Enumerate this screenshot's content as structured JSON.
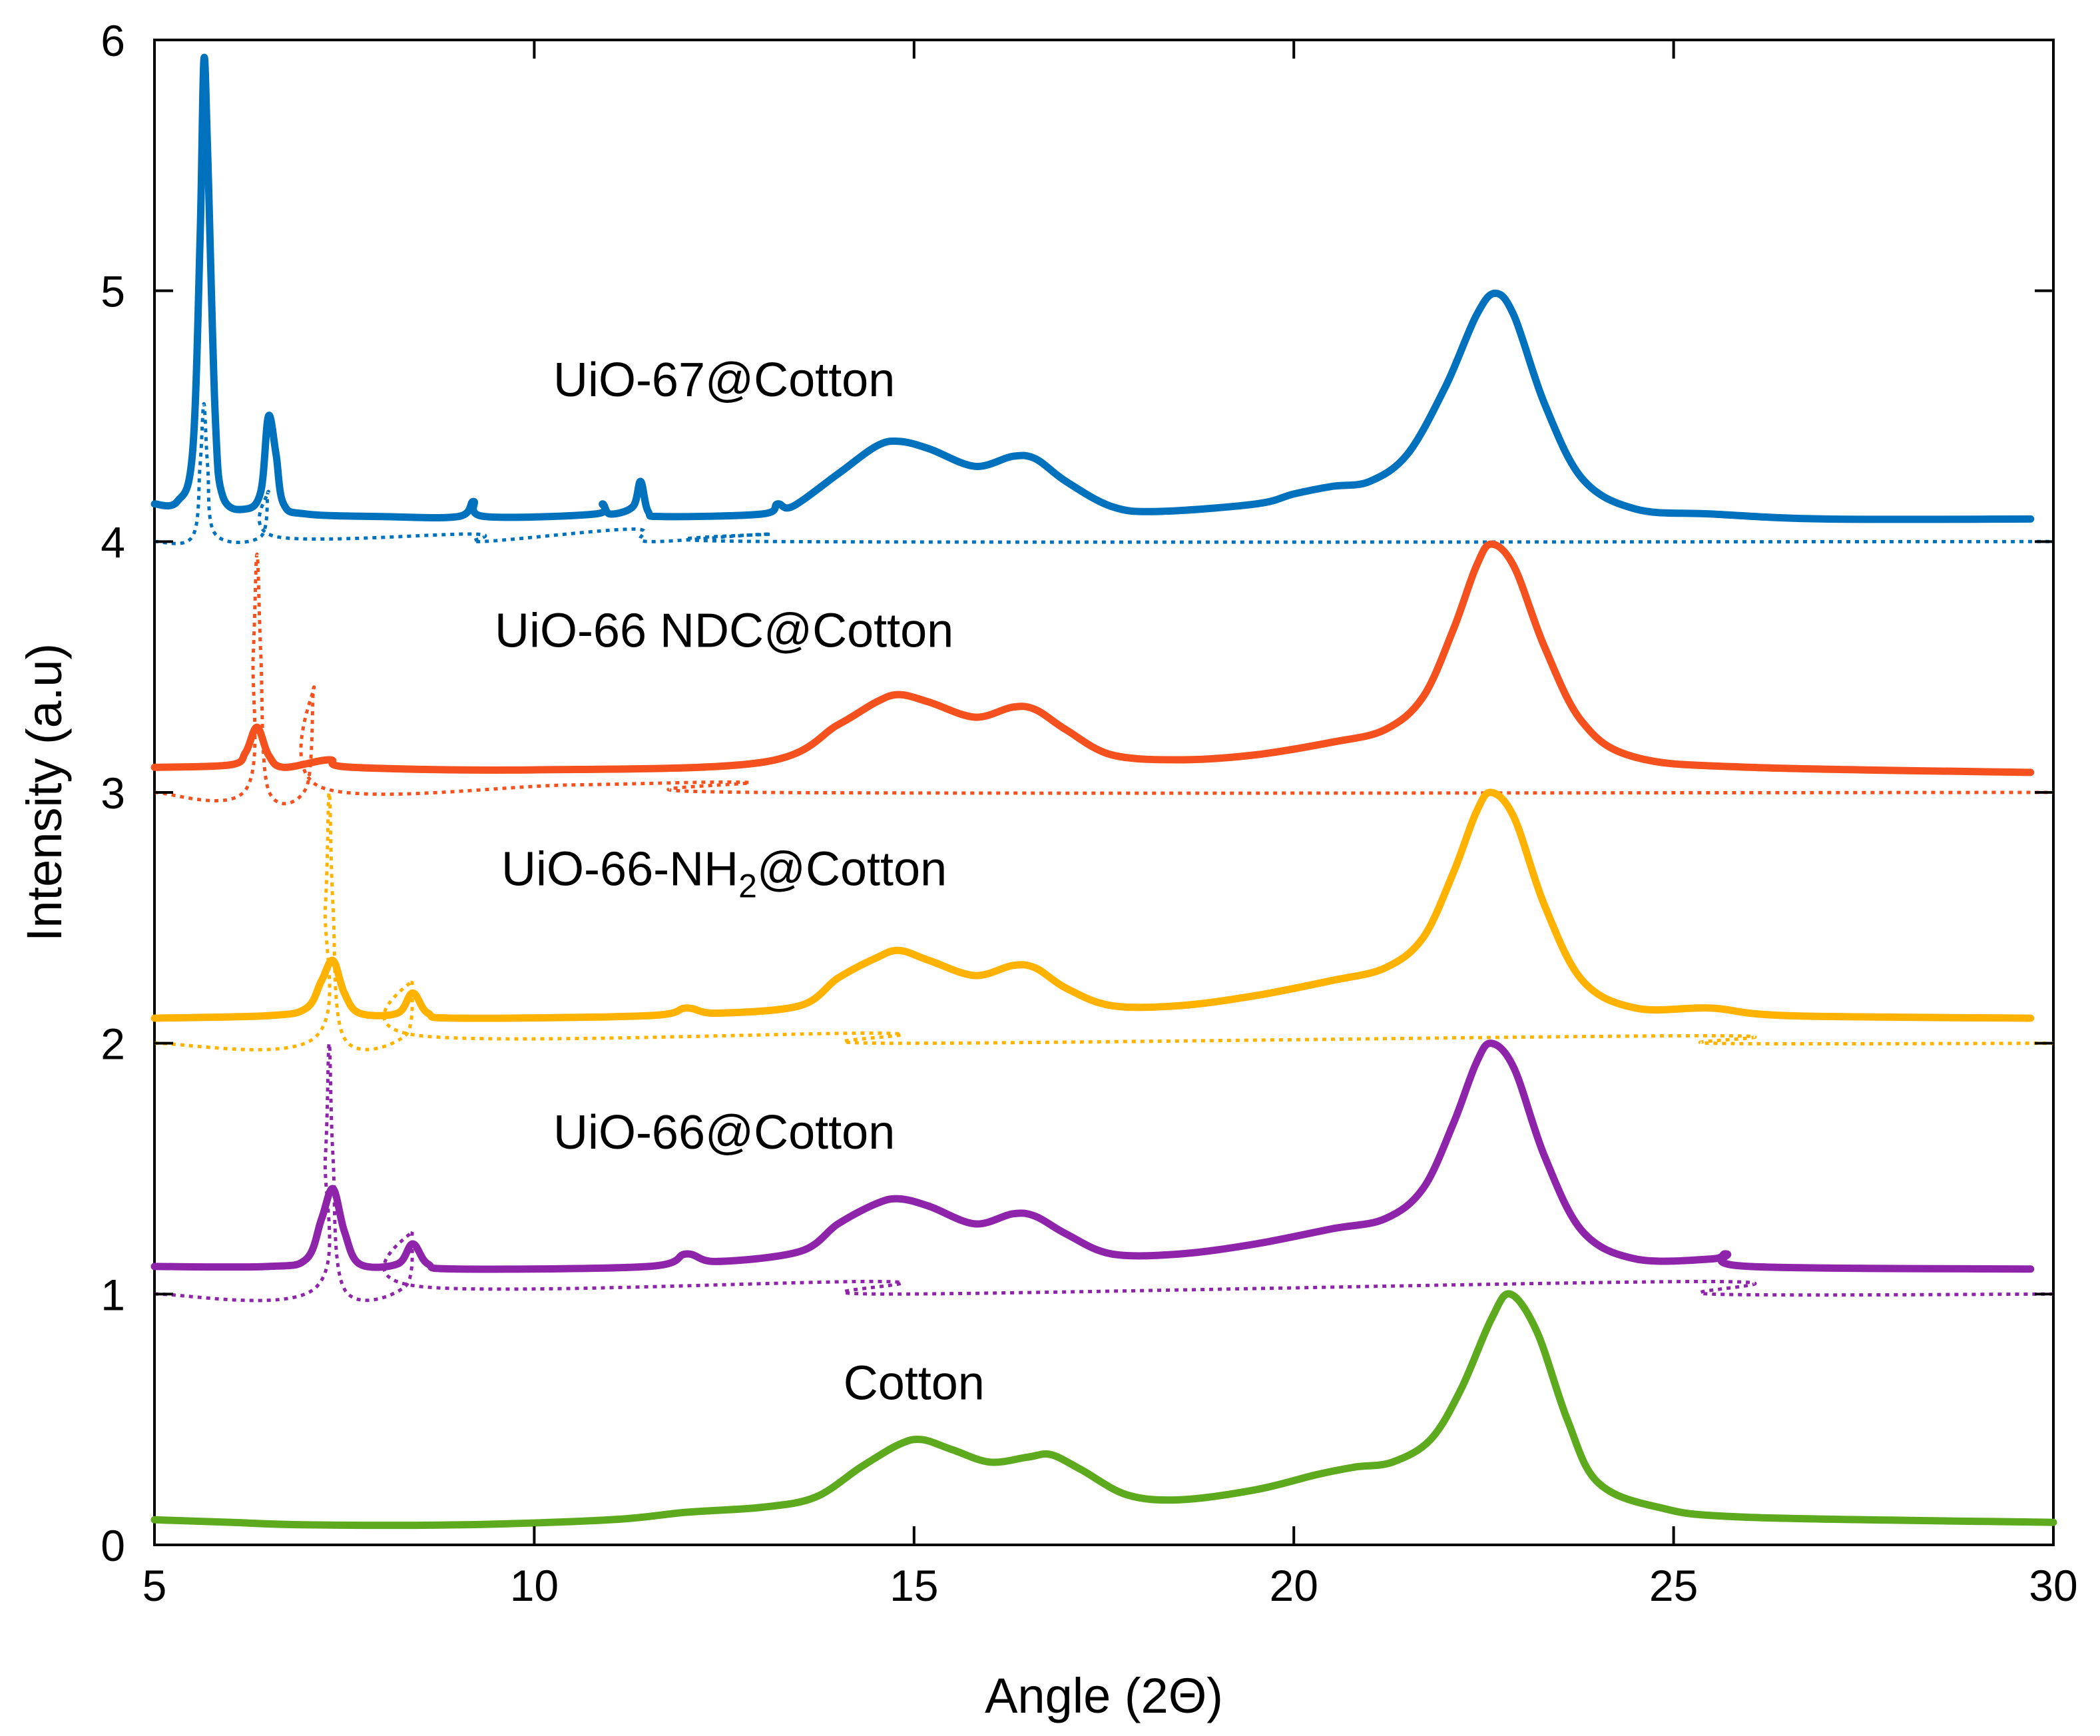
{
  "chart_data": {
    "type": "line",
    "title": "",
    "xlabel": "Angle (2Θ)",
    "ylabel": "Intensity (a.u)",
    "xlim": [
      5,
      30
    ],
    "ylim": [
      0,
      6
    ],
    "xticks": [
      "5",
      "10",
      "15",
      "20",
      "25",
      "30"
    ],
    "yticks": [
      "0",
      "1",
      "2",
      "3",
      "4",
      "5",
      "6"
    ],
    "grid": false,
    "legend": "none",
    "series": [
      {
        "name": "UiO-67@Cotton",
        "label_prefix": "UiO-67@Cotton",
        "label_sub": "",
        "label_suffix": "",
        "label_pos": [
          12.5,
          4.58
        ],
        "color": "#0072BD",
        "measured": [
          [
            5.0,
            4.15
          ],
          [
            5.3,
            4.16
          ],
          [
            5.5,
            4.35
          ],
          [
            5.6,
            5.2
          ],
          [
            5.65,
            5.92
          ],
          [
            5.7,
            5.55
          ],
          [
            5.8,
            4.5
          ],
          [
            5.9,
            4.18
          ],
          [
            6.2,
            4.13
          ],
          [
            6.4,
            4.2
          ],
          [
            6.5,
            4.5
          ],
          [
            6.6,
            4.35
          ],
          [
            6.7,
            4.15
          ],
          [
            7.0,
            4.11
          ],
          [
            8.0,
            4.1
          ],
          [
            9.0,
            4.1
          ],
          [
            9.2,
            4.16
          ],
          [
            9.35,
            4.1
          ],
          [
            10.8,
            4.11
          ],
          [
            10.9,
            4.15
          ],
          [
            11.0,
            4.11
          ],
          [
            11.3,
            4.14
          ],
          [
            11.4,
            4.24
          ],
          [
            11.5,
            4.12
          ],
          [
            11.7,
            4.1
          ],
          [
            13.0,
            4.11
          ],
          [
            13.2,
            4.15
          ],
          [
            13.4,
            4.14
          ],
          [
            14.0,
            4.27
          ],
          [
            14.5,
            4.38
          ],
          [
            14.8,
            4.4
          ],
          [
            15.2,
            4.37
          ],
          [
            15.8,
            4.3
          ],
          [
            16.3,
            4.34
          ],
          [
            16.6,
            4.33
          ],
          [
            17.0,
            4.24
          ],
          [
            17.6,
            4.14
          ],
          [
            18.2,
            4.12
          ],
          [
            19.5,
            4.15
          ],
          [
            20.0,
            4.19
          ],
          [
            20.5,
            4.22
          ],
          [
            21.0,
            4.24
          ],
          [
            21.5,
            4.35
          ],
          [
            22.0,
            4.62
          ],
          [
            22.4,
            4.9
          ],
          [
            22.65,
            4.99
          ],
          [
            22.9,
            4.9
          ],
          [
            23.3,
            4.55
          ],
          [
            23.8,
            4.25
          ],
          [
            24.5,
            4.13
          ],
          [
            25.5,
            4.11
          ],
          [
            27.0,
            4.09
          ],
          [
            29.7,
            4.09
          ]
        ],
        "reference": [
          [
            5.0,
            4.0
          ],
          [
            5.5,
            4.02
          ],
          [
            5.6,
            4.3
          ],
          [
            5.65,
            4.55
          ],
          [
            5.7,
            4.3
          ],
          [
            5.8,
            4.03
          ],
          [
            6.4,
            4.02
          ],
          [
            6.5,
            4.2
          ],
          [
            6.6,
            4.02
          ],
          [
            9.2,
            4.03
          ],
          [
            9.3,
            4.0
          ],
          [
            11.3,
            4.05
          ],
          [
            11.5,
            4.0
          ],
          [
            13.1,
            4.03
          ],
          [
            13.2,
            4.0
          ],
          [
            30.0,
            4.0
          ]
        ]
      },
      {
        "name": "UiO-66 NDC@Cotton",
        "label_prefix": "UiO-66 NDC@Cotton",
        "label_sub": "",
        "label_suffix": "",
        "label_pos": [
          12.5,
          3.58
        ],
        "color": "#F4511E",
        "measured": [
          [
            5.0,
            3.1
          ],
          [
            6.0,
            3.11
          ],
          [
            6.2,
            3.16
          ],
          [
            6.35,
            3.26
          ],
          [
            6.5,
            3.15
          ],
          [
            6.7,
            3.1
          ],
          [
            7.3,
            3.13
          ],
          [
            7.6,
            3.1
          ],
          [
            10.0,
            3.09
          ],
          [
            13.0,
            3.12
          ],
          [
            14.0,
            3.27
          ],
          [
            14.5,
            3.36
          ],
          [
            14.8,
            3.39
          ],
          [
            15.2,
            3.36
          ],
          [
            15.8,
            3.3
          ],
          [
            16.3,
            3.34
          ],
          [
            16.6,
            3.33
          ],
          [
            17.0,
            3.25
          ],
          [
            17.6,
            3.15
          ],
          [
            18.5,
            3.13
          ],
          [
            19.5,
            3.15
          ],
          [
            20.5,
            3.2
          ],
          [
            21.2,
            3.25
          ],
          [
            21.7,
            3.38
          ],
          [
            22.1,
            3.65
          ],
          [
            22.4,
            3.9
          ],
          [
            22.6,
            3.99
          ],
          [
            22.9,
            3.9
          ],
          [
            23.3,
            3.58
          ],
          [
            23.8,
            3.28
          ],
          [
            24.5,
            3.14
          ],
          [
            26.0,
            3.1
          ],
          [
            29.7,
            3.08
          ]
        ],
        "reference": [
          [
            5.0,
            3.0
          ],
          [
            6.2,
            3.01
          ],
          [
            6.3,
            3.55
          ],
          [
            6.35,
            3.95
          ],
          [
            6.4,
            3.55
          ],
          [
            6.5,
            3.01
          ],
          [
            7.0,
            3.02
          ],
          [
            7.1,
            3.42
          ],
          [
            7.2,
            3.02
          ],
          [
            10.5,
            3.03
          ],
          [
            12.8,
            3.04
          ],
          [
            13.0,
            3.0
          ],
          [
            30.0,
            3.0
          ]
        ]
      },
      {
        "name": "UiO-66-NH2@Cotton",
        "label_prefix": "UiO-66-NH",
        "label_sub": "2",
        "label_suffix": "@Cotton",
        "label_pos": [
          12.5,
          2.63
        ],
        "color": "#FFB300",
        "measured": [
          [
            5.0,
            2.1
          ],
          [
            6.5,
            2.11
          ],
          [
            7.0,
            2.14
          ],
          [
            7.2,
            2.25
          ],
          [
            7.35,
            2.33
          ],
          [
            7.5,
            2.2
          ],
          [
            7.7,
            2.12
          ],
          [
            8.2,
            2.12
          ],
          [
            8.4,
            2.2
          ],
          [
            8.6,
            2.12
          ],
          [
            9.0,
            2.1
          ],
          [
            11.5,
            2.11
          ],
          [
            12.0,
            2.14
          ],
          [
            12.4,
            2.12
          ],
          [
            13.5,
            2.15
          ],
          [
            14.0,
            2.26
          ],
          [
            14.5,
            2.34
          ],
          [
            14.8,
            2.37
          ],
          [
            15.2,
            2.33
          ],
          [
            15.8,
            2.27
          ],
          [
            16.3,
            2.31
          ],
          [
            16.6,
            2.3
          ],
          [
            17.0,
            2.22
          ],
          [
            17.6,
            2.15
          ],
          [
            18.5,
            2.15
          ],
          [
            19.5,
            2.19
          ],
          [
            20.5,
            2.25
          ],
          [
            21.2,
            2.3
          ],
          [
            21.7,
            2.42
          ],
          [
            22.1,
            2.68
          ],
          [
            22.4,
            2.92
          ],
          [
            22.6,
            3.0
          ],
          [
            22.9,
            2.9
          ],
          [
            23.3,
            2.55
          ],
          [
            23.8,
            2.25
          ],
          [
            24.5,
            2.14
          ],
          [
            25.5,
            2.14
          ],
          [
            26.5,
            2.11
          ],
          [
            29.7,
            2.1
          ]
        ],
        "reference": [
          [
            5.0,
            2.0
          ],
          [
            7.1,
            2.02
          ],
          [
            7.25,
            2.55
          ],
          [
            7.3,
            3.0
          ],
          [
            7.35,
            2.55
          ],
          [
            7.5,
            2.02
          ],
          [
            8.3,
            2.03
          ],
          [
            8.4,
            2.25
          ],
          [
            8.5,
            2.03
          ],
          [
            14.6,
            2.04
          ],
          [
            14.7,
            2.0
          ],
          [
            25.4,
            2.03
          ],
          [
            25.5,
            2.0
          ],
          [
            30.0,
            2.0
          ]
        ]
      },
      {
        "name": "UiO-66@Cotton",
        "label_prefix": "UiO-66@Cotton",
        "label_sub": "",
        "label_suffix": "",
        "label_pos": [
          12.5,
          1.58
        ],
        "color": "#8E24AA",
        "measured": [
          [
            5.0,
            1.11
          ],
          [
            6.5,
            1.11
          ],
          [
            7.0,
            1.14
          ],
          [
            7.2,
            1.3
          ],
          [
            7.35,
            1.42
          ],
          [
            7.5,
            1.25
          ],
          [
            7.7,
            1.12
          ],
          [
            8.2,
            1.12
          ],
          [
            8.4,
            1.2
          ],
          [
            8.6,
            1.12
          ],
          [
            9.0,
            1.1
          ],
          [
            11.5,
            1.11
          ],
          [
            12.0,
            1.16
          ],
          [
            12.4,
            1.13
          ],
          [
            13.5,
            1.17
          ],
          [
            14.0,
            1.28
          ],
          [
            14.5,
            1.36
          ],
          [
            14.8,
            1.38
          ],
          [
            15.2,
            1.35
          ],
          [
            15.8,
            1.28
          ],
          [
            16.3,
            1.32
          ],
          [
            16.6,
            1.31
          ],
          [
            17.0,
            1.24
          ],
          [
            17.6,
            1.16
          ],
          [
            18.5,
            1.16
          ],
          [
            19.5,
            1.2
          ],
          [
            20.5,
            1.26
          ],
          [
            21.2,
            1.3
          ],
          [
            21.7,
            1.42
          ],
          [
            22.1,
            1.68
          ],
          [
            22.4,
            1.92
          ],
          [
            22.6,
            2.0
          ],
          [
            22.9,
            1.9
          ],
          [
            23.3,
            1.55
          ],
          [
            23.8,
            1.25
          ],
          [
            24.5,
            1.14
          ],
          [
            25.5,
            1.14
          ],
          [
            25.7,
            1.16
          ],
          [
            26.0,
            1.11
          ],
          [
            29.7,
            1.1
          ]
        ],
        "reference": [
          [
            5.0,
            1.0
          ],
          [
            7.1,
            1.02
          ],
          [
            7.25,
            1.55
          ],
          [
            7.3,
            2.0
          ],
          [
            7.35,
            1.55
          ],
          [
            7.5,
            1.02
          ],
          [
            8.3,
            1.03
          ],
          [
            8.4,
            1.25
          ],
          [
            8.5,
            1.03
          ],
          [
            14.6,
            1.05
          ],
          [
            14.7,
            1.0
          ],
          [
            25.4,
            1.05
          ],
          [
            25.5,
            1.0
          ],
          [
            30.0,
            1.0
          ]
        ]
      },
      {
        "name": "Cotton",
        "label_prefix": "Cotton",
        "label_sub": "",
        "label_suffix": "",
        "label_pos": [
          15.0,
          0.58
        ],
        "color": "#5DAA1E",
        "measured": [
          [
            5.0,
            0.1
          ],
          [
            6.0,
            0.09
          ],
          [
            7.0,
            0.08
          ],
          [
            9.0,
            0.08
          ],
          [
            11.0,
            0.1
          ],
          [
            12.0,
            0.13
          ],
          [
            13.0,
            0.15
          ],
          [
            13.7,
            0.19
          ],
          [
            14.3,
            0.31
          ],
          [
            14.8,
            0.4
          ],
          [
            15.1,
            0.42
          ],
          [
            15.5,
            0.38
          ],
          [
            16.0,
            0.33
          ],
          [
            16.5,
            0.35
          ],
          [
            16.8,
            0.36
          ],
          [
            17.2,
            0.3
          ],
          [
            17.8,
            0.2
          ],
          [
            18.5,
            0.18
          ],
          [
            19.5,
            0.22
          ],
          [
            20.3,
            0.28
          ],
          [
            20.8,
            0.31
          ],
          [
            21.3,
            0.33
          ],
          [
            21.8,
            0.42
          ],
          [
            22.2,
            0.62
          ],
          [
            22.6,
            0.9
          ],
          [
            22.85,
            1.0
          ],
          [
            23.2,
            0.85
          ],
          [
            23.6,
            0.5
          ],
          [
            24.0,
            0.25
          ],
          [
            24.8,
            0.15
          ],
          [
            26.0,
            0.11
          ],
          [
            30.0,
            0.09
          ]
        ],
        "reference": []
      }
    ]
  }
}
